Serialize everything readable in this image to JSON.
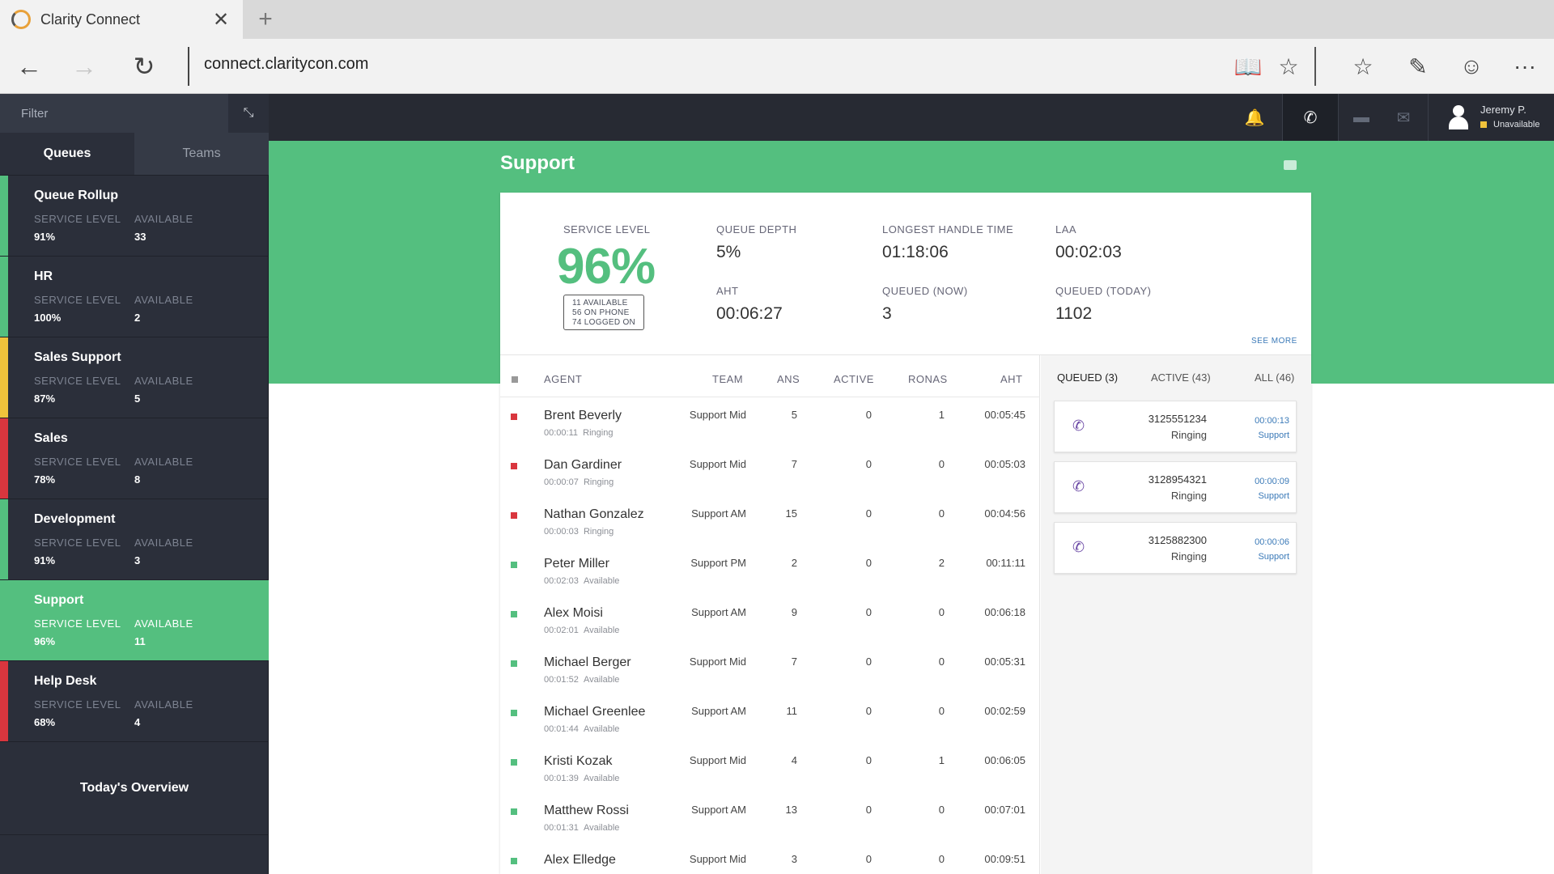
{
  "browser": {
    "tab_title": "Clarity Connect",
    "close_glyph": "✕",
    "new_tab_glyph": "+",
    "url": "connect.claritycon.com",
    "icons": {
      "back": "←",
      "forward": "→",
      "refresh": "↻",
      "reading": "📖",
      "favorite": "☆",
      "hub": "☆",
      "note": "✎",
      "feedback": "☺",
      "more": "···"
    }
  },
  "sidebar": {
    "filter_placeholder": "Filter",
    "filter_icon": "⤡",
    "tabs": [
      "Queues",
      "Teams"
    ],
    "label_service_level": "SERVICE LEVEL",
    "label_available": "AVAILABLE",
    "queues": [
      {
        "name": "Queue Rollup",
        "service_level": "91%",
        "available": "33",
        "color": "#54bf7f"
      },
      {
        "name": "HR",
        "service_level": "100%",
        "available": "2",
        "color": "#54bf7f"
      },
      {
        "name": "Sales Support",
        "service_level": "87%",
        "available": "5",
        "color": "#f0c23b"
      },
      {
        "name": "Sales",
        "service_level": "78%",
        "available": "8",
        "color": "#d9363e"
      },
      {
        "name": "Development",
        "service_level": "91%",
        "available": "3",
        "color": "#54bf7f"
      },
      {
        "name": "Support",
        "service_level": "96%",
        "available": "11",
        "color": "#54bf7f"
      },
      {
        "name": "Help Desk",
        "service_level": "68%",
        "available": "4",
        "color": "#d9363e"
      }
    ],
    "overview": "Today's Overview"
  },
  "topnav": {
    "user_name": "Jeremy P.",
    "user_status": "Unavailable",
    "status_color": "#f0c23b",
    "icons": {
      "notification": "🔔",
      "phone": "✆",
      "chat": "▬",
      "email": "✉"
    }
  },
  "page": {
    "title": "Support",
    "stats": {
      "service_level_label": "SERVICE LEVEL",
      "service_level": "96%",
      "sl_available": "11 AVAILABLE",
      "sl_on_phone": "56 ON PHONE",
      "sl_logged_on": "74 LOGGED ON",
      "queue_depth_label": "QUEUE DEPTH",
      "queue_depth": "5%",
      "aht_label": "AHT",
      "aht": "00:06:27",
      "lht_label": "LONGEST HANDLE TIME",
      "lht": "01:18:06",
      "queued_now_label": "QUEUED (NOW)",
      "queued_now": "3",
      "laa_label": "LAA",
      "laa": "00:02:03",
      "queued_today_label": "QUEUED (TODAY)",
      "queued_today": "1102",
      "see_more": "SEE MORE"
    },
    "agent_columns": {
      "agent": "AGENT",
      "team": "TEAM",
      "ans": "ANS",
      "active": "ACTIVE",
      "ronas": "RONAS",
      "aht": "AHT"
    },
    "agents": [
      {
        "name": "Brent Beverly",
        "time": "00:00:11",
        "state": "Ringing",
        "team": "Support Mid",
        "ans": "5",
        "active": "0",
        "ronas": "1",
        "aht": "00:05:45",
        "color": "#d9363e"
      },
      {
        "name": "Dan Gardiner",
        "time": "00:00:07",
        "state": "Ringing",
        "team": "Support Mid",
        "ans": "7",
        "active": "0",
        "ronas": "0",
        "aht": "00:05:03",
        "color": "#d9363e"
      },
      {
        "name": "Nathan Gonzalez",
        "time": "00:00:03",
        "state": "Ringing",
        "team": "Support AM",
        "ans": "15",
        "active": "0",
        "ronas": "0",
        "aht": "00:04:56",
        "color": "#d9363e"
      },
      {
        "name": "Peter Miller",
        "time": "00:02:03",
        "state": "Available",
        "team": "Support PM",
        "ans": "2",
        "active": "0",
        "ronas": "2",
        "aht": "00:11:11",
        "color": "#54bf7f"
      },
      {
        "name": "Alex Moisi",
        "time": "00:02:01",
        "state": "Available",
        "team": "Support AM",
        "ans": "9",
        "active": "0",
        "ronas": "0",
        "aht": "00:06:18",
        "color": "#54bf7f"
      },
      {
        "name": "Michael Berger",
        "time": "00:01:52",
        "state": "Available",
        "team": "Support Mid",
        "ans": "7",
        "active": "0",
        "ronas": "0",
        "aht": "00:05:31",
        "color": "#54bf7f"
      },
      {
        "name": "Michael Greenlee",
        "time": "00:01:44",
        "state": "Available",
        "team": "Support AM",
        "ans": "11",
        "active": "0",
        "ronas": "0",
        "aht": "00:02:59",
        "color": "#54bf7f"
      },
      {
        "name": "Kristi Kozak",
        "time": "00:01:39",
        "state": "Available",
        "team": "Support Mid",
        "ans": "4",
        "active": "0",
        "ronas": "1",
        "aht": "00:06:05",
        "color": "#54bf7f"
      },
      {
        "name": "Matthew Rossi",
        "time": "00:01:31",
        "state": "Available",
        "team": "Support AM",
        "ans": "13",
        "active": "0",
        "ronas": "0",
        "aht": "00:07:01",
        "color": "#54bf7f"
      },
      {
        "name": "Alex Elledge",
        "time": "",
        "state": "",
        "team": "Support Mid",
        "ans": "3",
        "active": "0",
        "ronas": "0",
        "aht": "00:09:51",
        "color": "#54bf7f"
      }
    ],
    "queue_tabs": [
      "QUEUED (3)",
      "ACTIVE (43)",
      "ALL (46)"
    ],
    "queued_calls": [
      {
        "number": "3125551234",
        "state": "Ringing",
        "time": "00:00:13",
        "team": "Support"
      },
      {
        "number": "3128954321",
        "state": "Ringing",
        "time": "00:00:09",
        "team": "Support"
      },
      {
        "number": "3125882300",
        "state": "Ringing",
        "time": "00:00:06",
        "team": "Support"
      }
    ],
    "call_icon": "✆"
  }
}
